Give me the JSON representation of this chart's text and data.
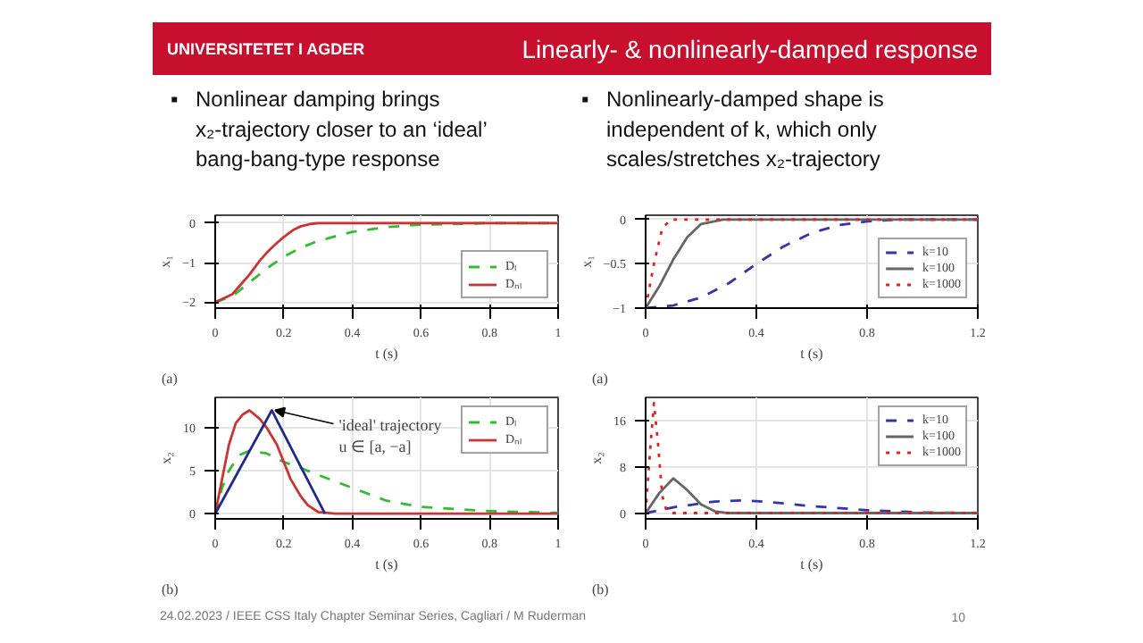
{
  "chart_data": [
    {
      "type": "other",
      "title": "Linearly- & nonlinearly-damped response",
      "annotations": [
        "UNIVERSITETET I AGDER",
        "▪ Nonlinear damping brings\nx₂-trajectory closer to an ‘ideal’\nbang-bang-type response",
        "▪ Nonlinearly-damped shape is\nindependent of k, which only\nscales/stretches x₂-trajectory",
        "24.02.2023 / IEEE CSS Italy Chapter Seminar Series, Cagliari / M Ruderman",
        "10"
      ]
    },
    {
      "type": "line",
      "xlabel": "t (s)",
      "ylabel": "x₁",
      "xlim": [
        0,
        1
      ],
      "ylim": [
        -2.15,
        0.2
      ],
      "xticks": [
        0,
        0.2,
        0.4,
        0.6,
        0.8,
        1
      ],
      "yticks": [
        -2,
        -1,
        0
      ],
      "grid": true,
      "legend": "bottom right",
      "annotations": [
        "(a)"
      ],
      "series": [
        {
          "name": "Dₗ",
          "color": "#33bb33",
          "line_style": "dashed",
          "x": [
            0,
            0.05,
            0.1,
            0.15,
            0.2,
            0.25,
            0.3,
            0.4,
            0.5,
            0.6,
            0.7,
            0.8,
            1
          ],
          "values": [
            -2,
            -1.85,
            -1.5,
            -1.15,
            -0.85,
            -0.62,
            -0.45,
            -0.22,
            -0.1,
            -0.04,
            -0.02,
            0,
            0
          ]
        },
        {
          "name": "Dₙₗ",
          "color": "#cc3333",
          "line_style": "solid",
          "x": [
            0,
            0.05,
            0.08,
            0.1,
            0.13,
            0.15,
            0.18,
            0.2,
            0.23,
            0.25,
            0.28,
            0.3,
            0.35,
            1
          ],
          "values": [
            -2,
            -1.8,
            -1.5,
            -1.3,
            -0.95,
            -0.75,
            -0.5,
            -0.35,
            -0.16,
            -0.08,
            -0.02,
            0,
            0,
            0
          ]
        }
      ]
    },
    {
      "type": "line",
      "xlabel": "t (s)",
      "ylabel": "x₂",
      "xlim": [
        0,
        1
      ],
      "ylim": [
        -0.6,
        13.5
      ],
      "xticks": [
        0,
        0.2,
        0.4,
        0.6,
        0.8,
        1
      ],
      "yticks": [
        0,
        5,
        10
      ],
      "grid": true,
      "legend": "top right",
      "annotations": [
        "(b)",
        {
          "text": "'ideal' trajectory\nu ∈ [a, −a]",
          "x": 0.165,
          "y": 12
        }
      ],
      "series": [
        {
          "name": "Dₗ",
          "color": "#33bb33",
          "line_style": "dashed",
          "x": [
            0,
            0.02,
            0.04,
            0.07,
            0.1,
            0.15,
            0.2,
            0.25,
            0.3,
            0.4,
            0.5,
            0.6,
            0.8,
            1
          ],
          "values": [
            0,
            3,
            5,
            6.8,
            7.3,
            7,
            6,
            5.3,
            4.5,
            3,
            1.5,
            0.8,
            0.3,
            0.1
          ]
        },
        {
          "name": "Dₙₗ",
          "color": "#cc3333",
          "line_style": "solid",
          "x": [
            0,
            0.02,
            0.04,
            0.06,
            0.08,
            0.1,
            0.13,
            0.15,
            0.18,
            0.2,
            0.22,
            0.25,
            0.27,
            0.3,
            0.35,
            1
          ],
          "values": [
            0,
            4,
            8,
            10.5,
            11.5,
            12,
            11,
            10,
            8,
            6,
            4,
            2,
            1,
            0.2,
            0,
            0
          ]
        },
        {
          "color": "#1f2a8a",
          "line_style": "solid",
          "x": [
            0,
            0.165,
            0.32
          ],
          "values": [
            0,
            12,
            0
          ]
        }
      ]
    },
    {
      "type": "line",
      "xlabel": "t (s)",
      "ylabel": "x₁",
      "xlim": [
        0,
        1.2
      ],
      "ylim": [
        -1,
        0.05
      ],
      "xticks": [
        0,
        0.4,
        0.8,
        1.2
      ],
      "yticks": [
        -1,
        -0.5,
        0
      ],
      "grid": true,
      "legend": "bottom right",
      "annotations": [
        "(a)"
      ],
      "series": [
        {
          "name": "k=10",
          "color": "#3333aa",
          "line_style": "dashed",
          "x": [
            0,
            0.1,
            0.2,
            0.3,
            0.4,
            0.5,
            0.6,
            0.7,
            0.8,
            0.9,
            1.2
          ],
          "values": [
            -1,
            -0.97,
            -0.88,
            -0.72,
            -0.5,
            -0.3,
            -0.15,
            -0.06,
            -0.02,
            0,
            0
          ]
        },
        {
          "name": "k=100",
          "color": "#666666",
          "line_style": "solid",
          "x": [
            0,
            0.05,
            0.1,
            0.15,
            0.2,
            0.28,
            1.2
          ],
          "values": [
            -1,
            -0.75,
            -0.45,
            -0.2,
            -0.05,
            0,
            0
          ]
        },
        {
          "name": "k=1000",
          "color": "#dd2222",
          "line_style": "dotted",
          "x": [
            0,
            0.03,
            0.06,
            0.09,
            1.2
          ],
          "values": [
            -1,
            -0.5,
            -0.1,
            0,
            0
          ]
        }
      ]
    },
    {
      "type": "line",
      "xlabel": "t (s)",
      "ylabel": "x₂",
      "xlim": [
        0,
        1.2
      ],
      "ylim": [
        -1,
        20
      ],
      "xticks": [
        0,
        0.4,
        0.8,
        1.2
      ],
      "yticks": [
        0,
        8,
        16
      ],
      "grid": true,
      "legend": "top right",
      "annotations": [
        "(b)"
      ],
      "series": [
        {
          "name": "k=10",
          "color": "#3333aa",
          "line_style": "dashed",
          "x": [
            0,
            0.1,
            0.25,
            0.35,
            0.45,
            0.6,
            0.8,
            1,
            1.2
          ],
          "values": [
            0,
            1,
            2,
            2.2,
            1.9,
            1.2,
            0.5,
            0.1,
            0
          ]
        },
        {
          "name": "k=100",
          "color": "#666666",
          "line_style": "solid",
          "x": [
            0,
            0.05,
            0.1,
            0.15,
            0.2,
            0.25,
            0.3,
            1.2
          ],
          "values": [
            0,
            3.5,
            6,
            4,
            1.5,
            0.3,
            0,
            0
          ]
        },
        {
          "name": "k=1000",
          "color": "#dd2222",
          "line_style": "dotted",
          "x": [
            0,
            0.015,
            0.03,
            0.045,
            0.06,
            0.075,
            0.09,
            1.2
          ],
          "values": [
            0,
            10,
            19,
            12,
            3,
            0.5,
            0,
            0
          ]
        }
      ]
    }
  ]
}
